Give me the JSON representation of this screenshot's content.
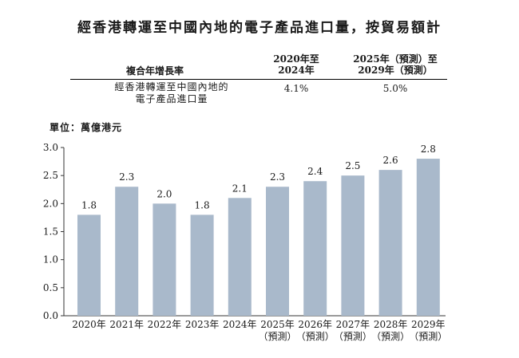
{
  "title": "經香港轉運至中國內地的電子產品進口量，按貿易額計",
  "cagr_table": {
    "header_label": "複合年增長率",
    "col1_header": [
      "2020年至",
      "2024年"
    ],
    "col2_header": [
      "2025年（預測）至",
      "2029年（預測）"
    ],
    "row_label": [
      "經香港轉運至中國內地的",
      "電子產品進口量"
    ],
    "col1_value": "4.1%",
    "col2_value": "5.0%"
  },
  "unit_label": "單位：萬億港元",
  "colors": {
    "bar": "#a9b9cb",
    "axis": "#333333",
    "text": "#1a1a1a"
  },
  "chart_data": {
    "type": "bar",
    "title": "經香港轉運至中國內地的電子產品進口量，按貿易額計",
    "ylabel": "單位：萬億港元",
    "xlabel": "",
    "ylim": [
      0,
      3.0
    ],
    "yticks": [
      "0.0",
      "0.5",
      "1.0",
      "1.5",
      "2.0",
      "2.5",
      "3.0"
    ],
    "categories": [
      "2020年",
      "2021年",
      "2022年",
      "2023年",
      "2024年",
      "2025年",
      "2026年",
      "2027年",
      "2028年",
      "2029年"
    ],
    "category_sublabels": [
      "",
      "",
      "",
      "",
      "",
      "（預測）",
      "（預測）",
      "（預測）",
      "（預測）",
      "（預測）"
    ],
    "values": [
      1.8,
      2.3,
      2.0,
      1.8,
      2.1,
      2.3,
      2.4,
      2.5,
      2.6,
      2.8
    ],
    "value_labels": [
      "1.8",
      "2.3",
      "2.0",
      "1.8",
      "2.1",
      "2.3",
      "2.4",
      "2.5",
      "2.6",
      "2.8"
    ],
    "grid": false,
    "legend": "none"
  }
}
